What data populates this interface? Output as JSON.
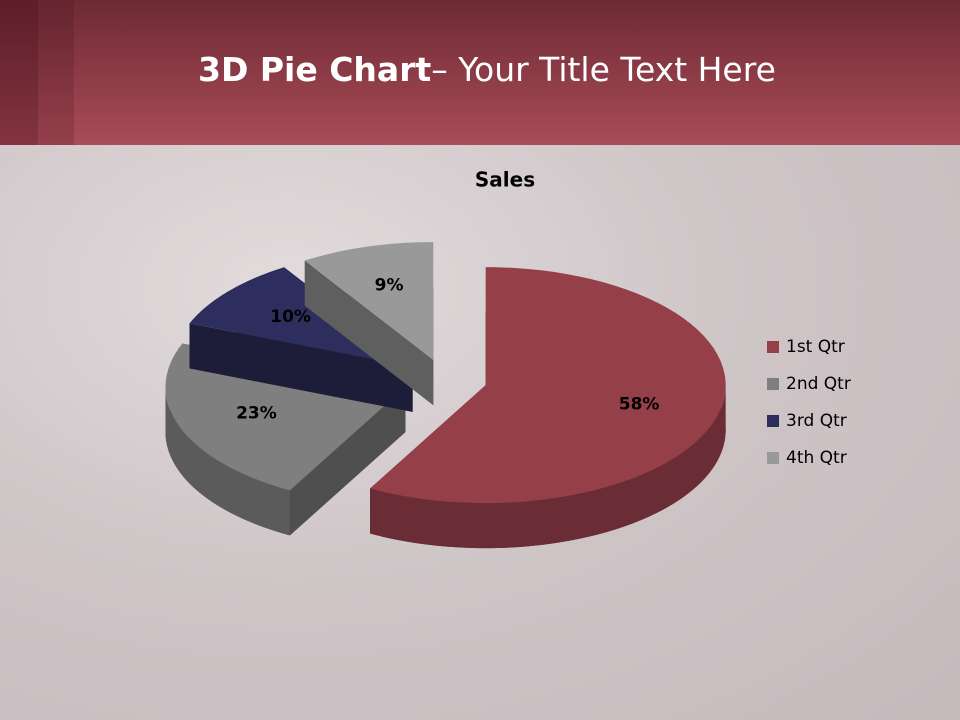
{
  "slide": {
    "title_bold": "3D Pie Chart",
    "title_rest": "– Your Title Text Here"
  },
  "chart_data": {
    "type": "pie",
    "title": "Sales",
    "categories": [
      "1st Qtr",
      "2nd Qtr",
      "3rd Qtr",
      "4th Qtr"
    ],
    "values": [
      58,
      23,
      10,
      9
    ],
    "value_labels": [
      "58%",
      "23%",
      "10%",
      "9%"
    ],
    "colors": [
      "#953f49",
      "#7f7f7f",
      "#2e2e5e",
      "#999999"
    ],
    "legend": "right"
  }
}
